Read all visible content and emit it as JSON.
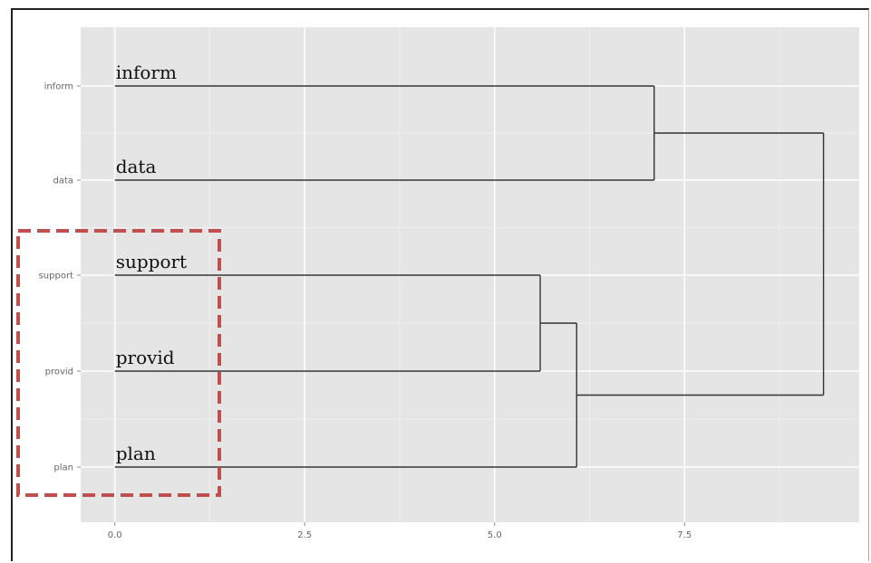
{
  "chart_data": {
    "type": "dendrogram",
    "title": "",
    "xlabel": "",
    "ylabel": "",
    "xlim": [
      -0.45,
      9.8
    ],
    "x_ticks": [
      "0.0",
      "2.5",
      "5.0",
      "7.5"
    ],
    "x_tick_values": [
      0,
      2.5,
      5.0,
      7.5
    ],
    "leaves": [
      "inform",
      "data",
      "support",
      "provid",
      "plan"
    ],
    "y_axis_labels": [
      "inform",
      "data",
      "support",
      "provid",
      "plan"
    ],
    "merges": [
      {
        "children": [
          "support",
          "provid"
        ],
        "height": 5.6
      },
      {
        "children": [
          "support+provid",
          "plan"
        ],
        "height": 6.08
      },
      {
        "children": [
          "inform",
          "data"
        ],
        "height": 7.1
      },
      {
        "children": [
          "inform+data",
          "support+provid+plan"
        ],
        "height": 9.33
      }
    ],
    "grid": true,
    "panel_color": "#e5e5e5",
    "line_color": "#333333",
    "highlight": {
      "leaves": [
        "support",
        "provid",
        "plan"
      ],
      "color": "#c0504d",
      "style": "dashed"
    }
  }
}
